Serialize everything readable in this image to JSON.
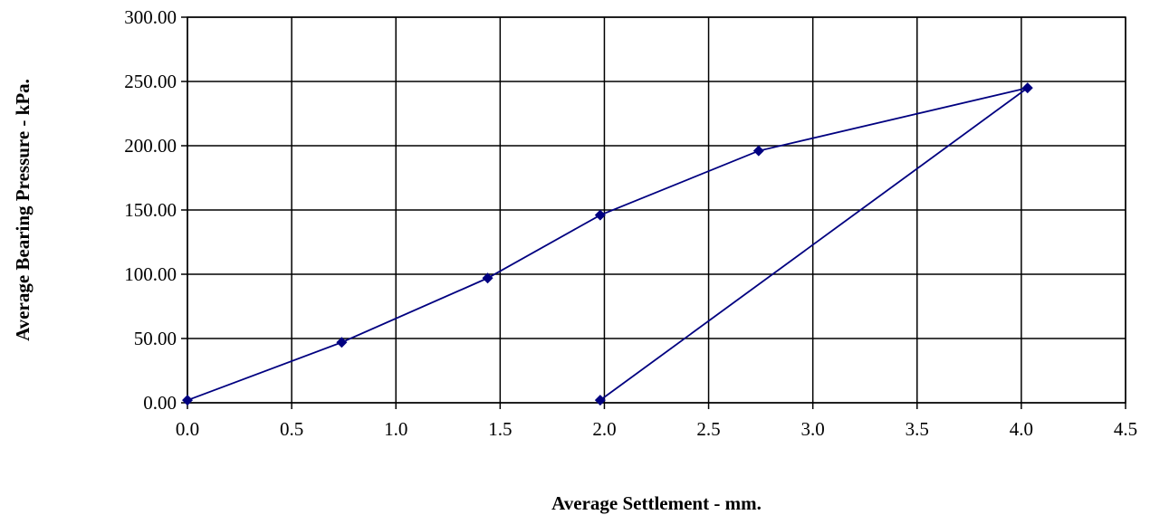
{
  "chart_data": {
    "type": "line",
    "xlabel": "Average Settlement - mm.",
    "ylabel": "Average Bearing Pressure - kPa.",
    "xlim": [
      0.0,
      4.5
    ],
    "ylim": [
      0,
      300
    ],
    "x_ticks": [
      "0.0",
      "0.5",
      "1.0",
      "1.5",
      "2.0",
      "2.5",
      "3.0",
      "3.5",
      "4.0",
      "4.5"
    ],
    "x_tick_values": [
      0.0,
      0.5,
      1.0,
      1.5,
      2.0,
      2.5,
      3.0,
      3.5,
      4.0,
      4.5
    ],
    "y_ticks": [
      "0.00",
      "50.00",
      "100.00",
      "150.00",
      "200.00",
      "250.00",
      "300.00"
    ],
    "y_tick_values": [
      0,
      50,
      100,
      150,
      200,
      250,
      300
    ],
    "grid": true,
    "legend": "none",
    "series": [
      {
        "color": "#000080",
        "marker": "diamond",
        "points": [
          {
            "x": 0.0,
            "y": 2
          },
          {
            "x": 0.74,
            "y": 47
          },
          {
            "x": 1.44,
            "y": 97
          },
          {
            "x": 1.98,
            "y": 146
          },
          {
            "x": 2.74,
            "y": 196
          },
          {
            "x": 4.03,
            "y": 245
          },
          {
            "x": 1.98,
            "y": 2
          }
        ]
      }
    ]
  }
}
